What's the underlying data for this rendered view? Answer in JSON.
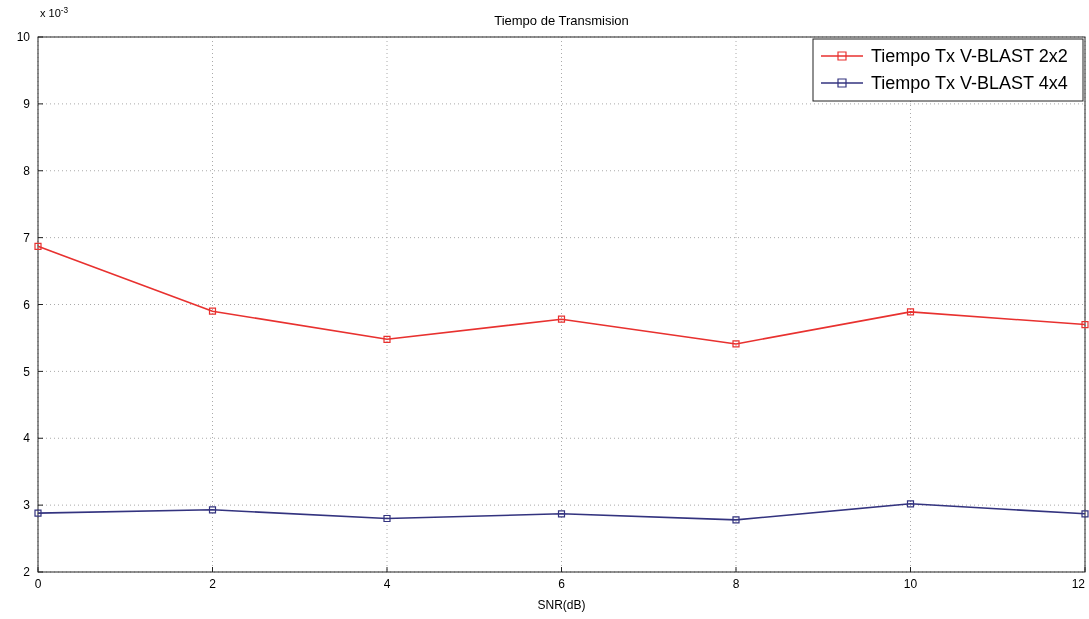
{
  "chart_data": {
    "type": "line",
    "title": "Tiempo de Transmision",
    "xlabel": "SNR(dB)",
    "annotations": [
      "x 10$^{-3}$"
    ],
    "x": [
      0,
      2,
      4,
      6,
      8,
      10,
      12
    ],
    "series": [
      {
        "name": "Tiempo Tx V-BLAST 2x2",
        "color": "#e8312f",
        "values": [
          6.87,
          5.9,
          5.48,
          5.78,
          5.41,
          5.89,
          5.7
        ]
      },
      {
        "name": "Tiempo Tx V-BLAST 4x4",
        "color": "#33337f",
        "values": [
          2.88,
          2.93,
          2.8,
          2.87,
          2.78,
          3.02,
          2.87
        ]
      }
    ],
    "xlim": [
      0,
      12
    ],
    "xticks": [
      0,
      2,
      4,
      6,
      8,
      10,
      12
    ],
    "ylim": [
      2,
      10
    ],
    "yticks": [
      2,
      3,
      4,
      5,
      6,
      7,
      8,
      9,
      10
    ],
    "grid": true,
    "legend": "top right",
    "marker": "square",
    "line_style": "solid"
  }
}
